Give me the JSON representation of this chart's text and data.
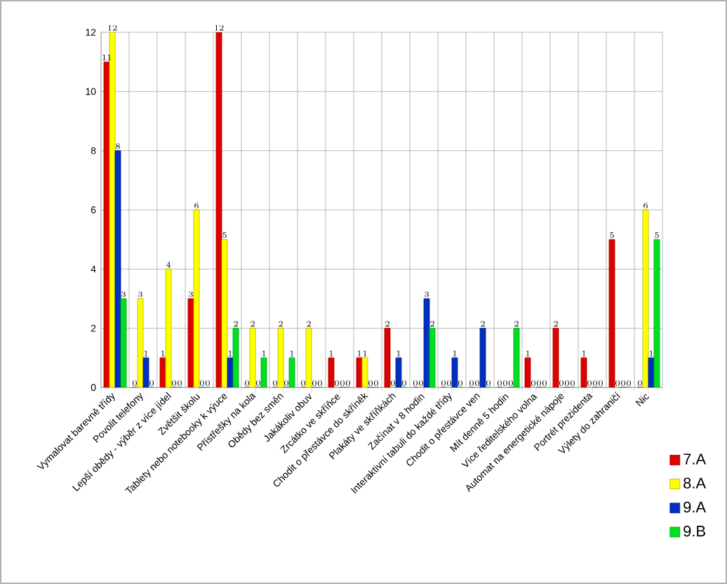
{
  "chart_data": {
    "type": "bar",
    "categories": [
      "Vymalovat barevně třídy",
      "Povolit telefony",
      "Lepší obědy - výběr z více jídel",
      "Zvětšit školu",
      "Tablety nebo notebooky k výuce",
      "Přístřešky na kola",
      "Obědy bez směn",
      "Jakákoliv obuv",
      "Zrcátko ve skříňce",
      "Chodit o přestávce do skříněk",
      "Plakáty ve skříňkách",
      "Začínat v 8 hodin",
      "Interaktivní tabuli do každé třídy",
      "Chodit o přestávce ven",
      "Mít denně 5 hodin",
      "Více ředitelského volna",
      "Automat na energetické nápoje",
      "Portrét prezidenta",
      "Výlety do zahraničí",
      "Nic"
    ],
    "series": [
      {
        "name": "7.A",
        "color": "#e00000",
        "values": [
          11,
          0,
          1,
          3,
          12,
          0,
          0,
          0,
          1,
          1,
          2,
          0,
          0,
          0,
          0,
          1,
          2,
          1,
          5,
          0
        ]
      },
      {
        "name": "8.A",
        "color": "#ffff00",
        "values": [
          12,
          3,
          4,
          6,
          5,
          2,
          2,
          2,
          0,
          1,
          0,
          0,
          0,
          0,
          0,
          0,
          0,
          0,
          0,
          6
        ]
      },
      {
        "name": "9.A",
        "color": "#0030c0",
        "values": [
          8,
          1,
          0,
          0,
          1,
          0,
          0,
          0,
          0,
          0,
          1,
          3,
          1,
          2,
          0,
          0,
          0,
          0,
          0,
          1
        ]
      },
      {
        "name": "9.B",
        "color": "#00e020",
        "values": [
          3,
          0,
          0,
          0,
          2,
          1,
          1,
          0,
          0,
          0,
          0,
          2,
          0,
          0,
          2,
          0,
          0,
          0,
          0,
          5
        ]
      }
    ],
    "ylim": [
      0,
      12
    ],
    "yticks": [
      0,
      2,
      4,
      6,
      8,
      10,
      12
    ],
    "data_labels": true,
    "grid": true,
    "legend": "bottom right"
  }
}
